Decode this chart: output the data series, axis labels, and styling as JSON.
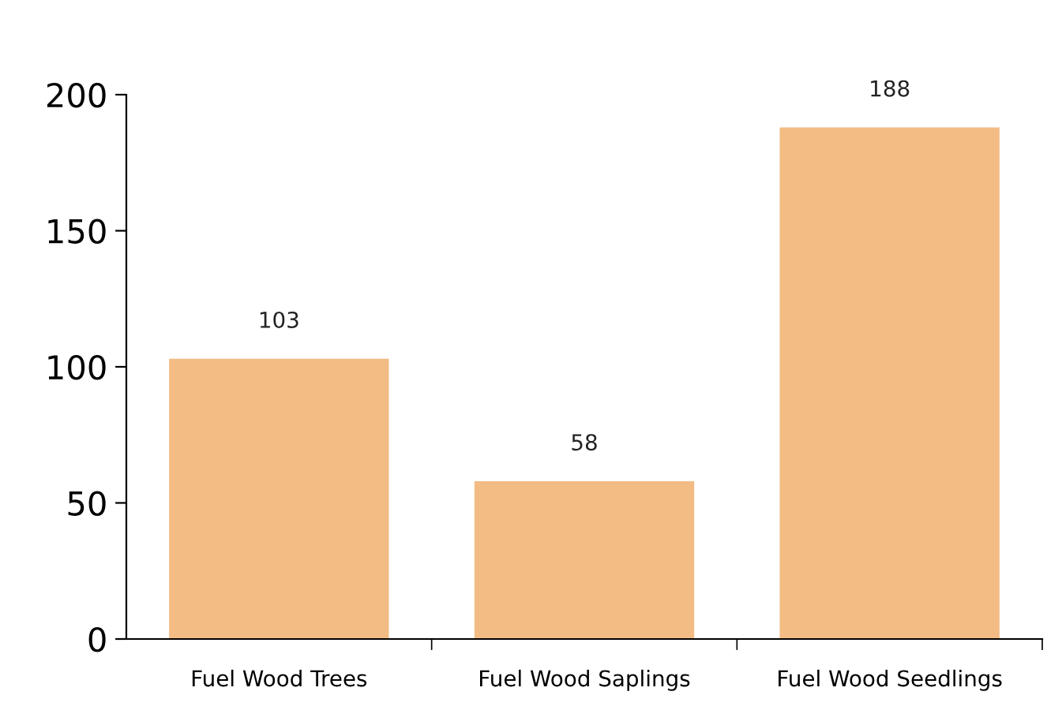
{
  "chart_data": {
    "type": "bar",
    "categories": [
      "Fuel Wood Trees",
      "Fuel Wood Saplings",
      "Fuel Wood Seedlings"
    ],
    "values": [
      103,
      58,
      188
    ],
    "color": "#f2bc84",
    "ylim": [
      0,
      200
    ],
    "yticks": [
      0,
      50,
      100,
      150,
      200
    ],
    "grid": false,
    "data_labels": true
  }
}
